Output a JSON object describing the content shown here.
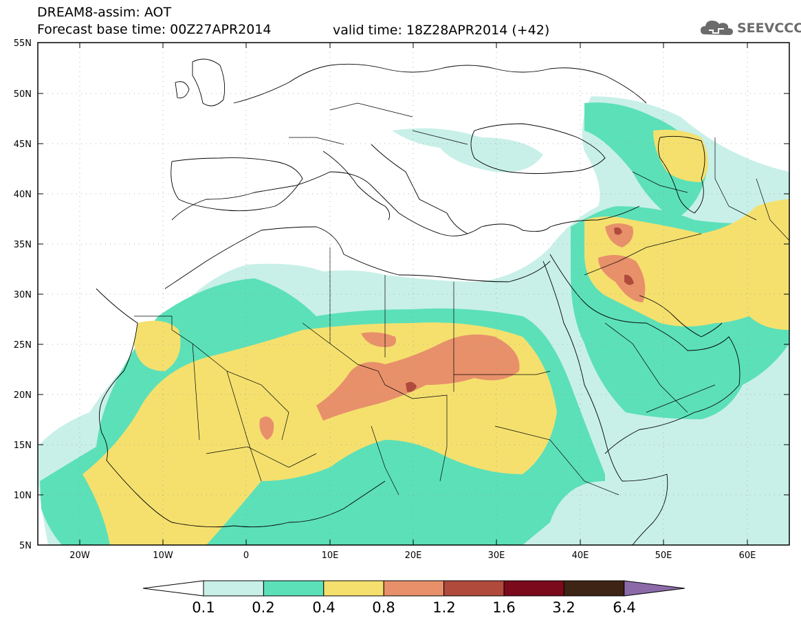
{
  "header": {
    "title": "DREAM8-assim: AOT",
    "base_time": "Forecast base time: 00Z27APR2014",
    "valid_time": "valid time: 18Z28APR2014 (+42)"
  },
  "logo": {
    "text": "SEEVCCC",
    "icon": "cloud-icon"
  },
  "axes": {
    "lat_labels": [
      "55N",
      "50N",
      "45N",
      "40N",
      "35N",
      "30N",
      "25N",
      "20N",
      "15N",
      "10N",
      "5N"
    ],
    "lon_labels": [
      "20W",
      "10W",
      "0",
      "10E",
      "20E",
      "30E",
      "40E",
      "50E",
      "60E"
    ]
  },
  "colorbar": {
    "labels": [
      "0.1",
      "0.2",
      "0.4",
      "0.8",
      "1.2",
      "1.6",
      "3.2",
      "6.4"
    ],
    "colors": [
      "#c8f0e8",
      "#5ce0b8",
      "#f5e06e",
      "#e8906a",
      "#b04a3c",
      "#7a0a1c",
      "#3e2414"
    ],
    "under_color": "#ffffff",
    "over_color": "#8c6aa8"
  }
}
